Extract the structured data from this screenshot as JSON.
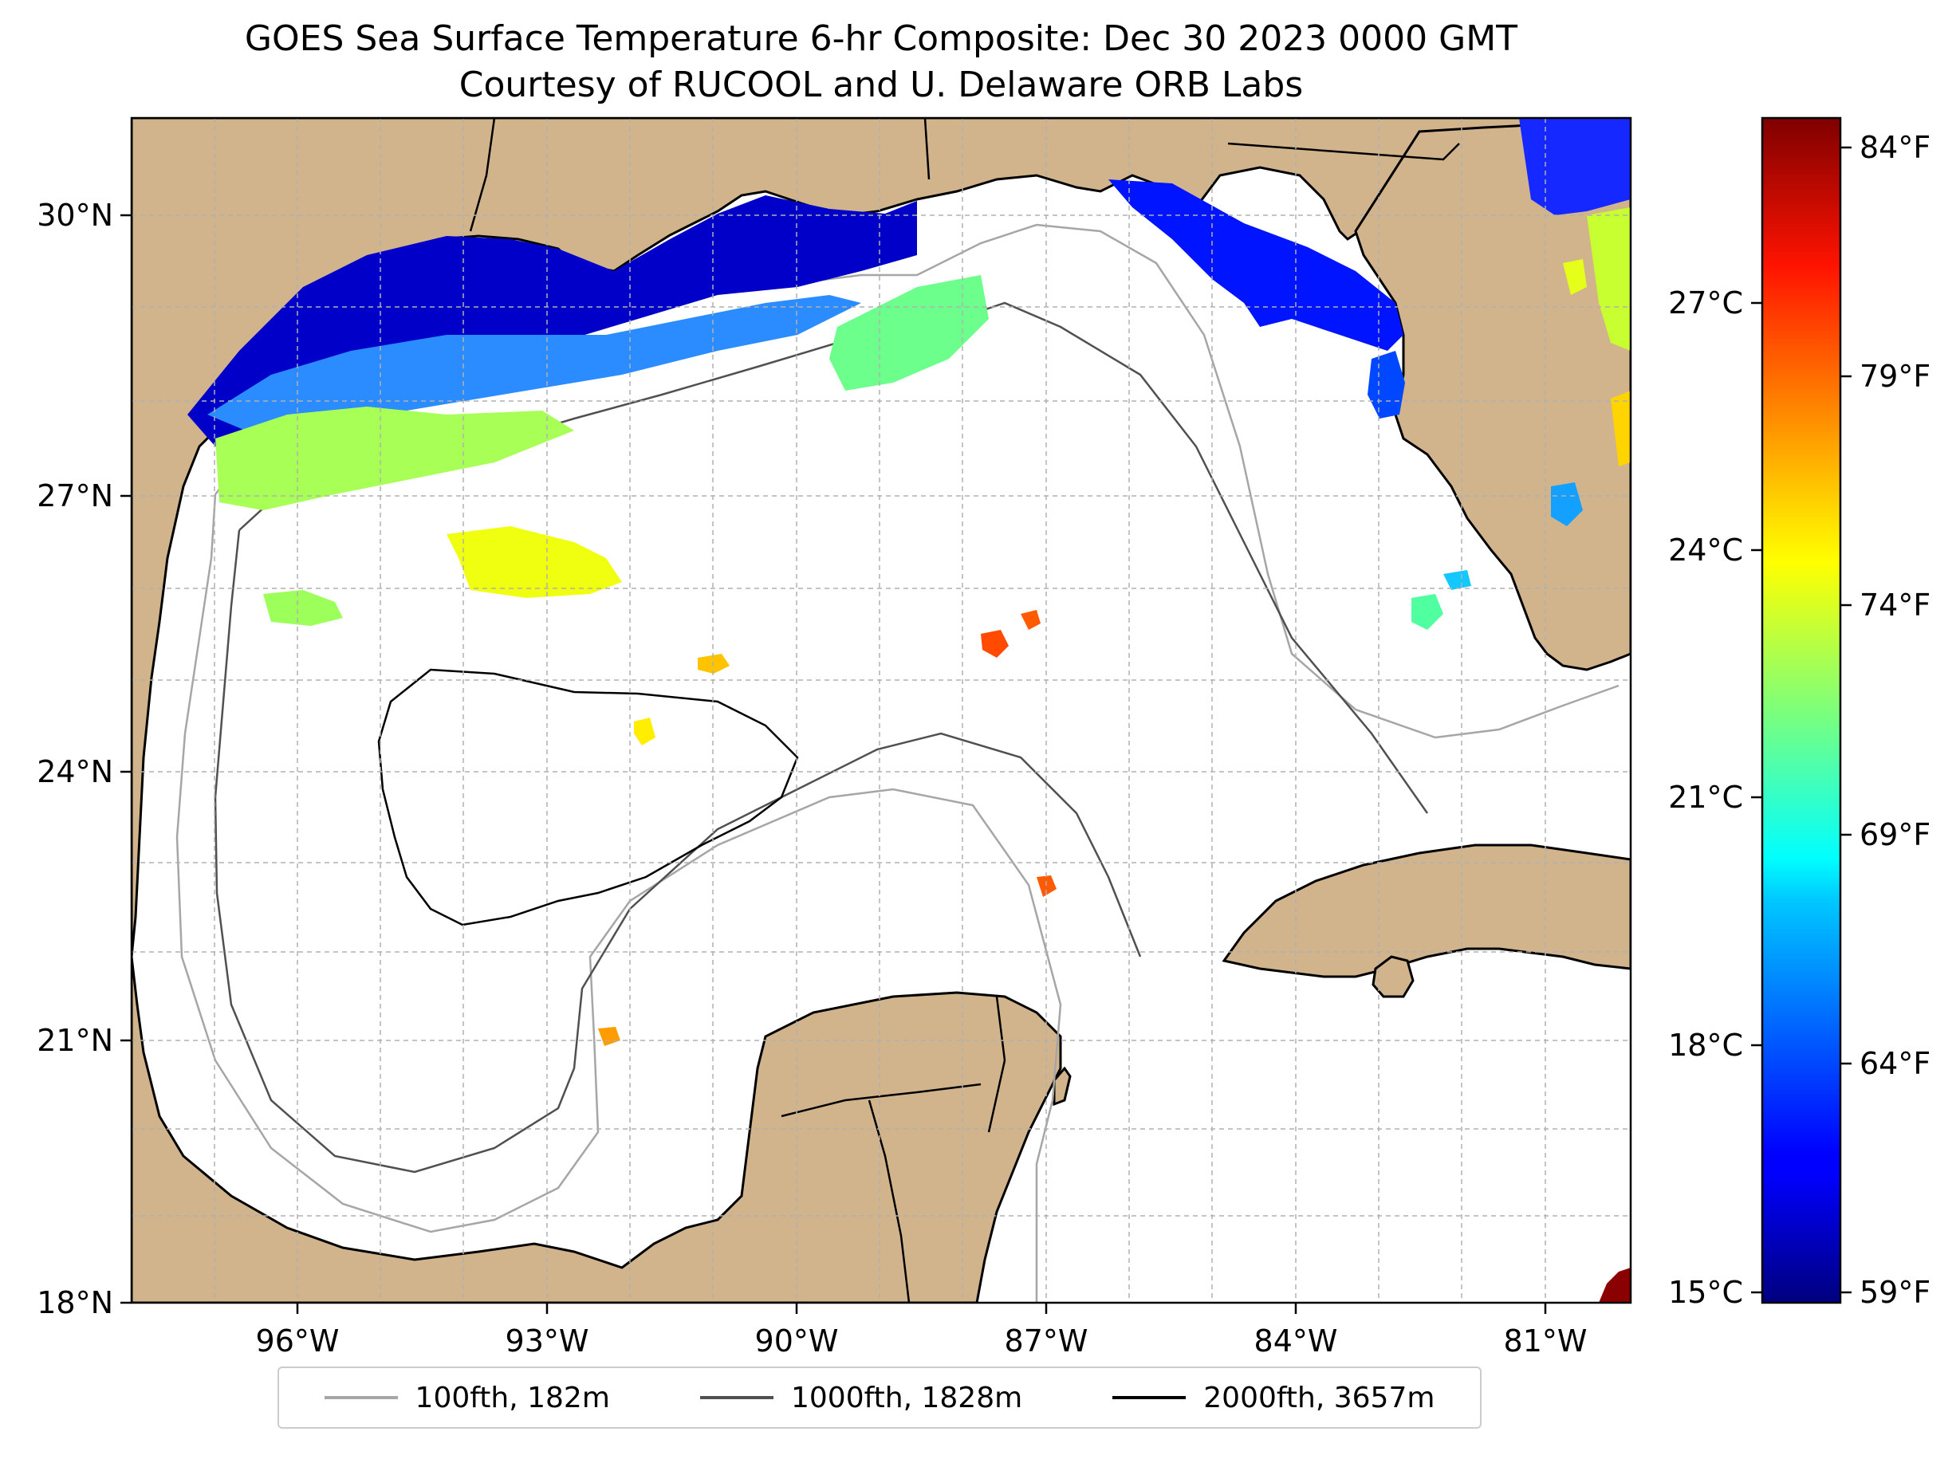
{
  "title": {
    "line1": "GOES Sea Surface Temperature 6-hr Composite: Dec 30 2023 0000 GMT",
    "line2": "Courtesy of RUCOOL and U. Delaware ORB Labs"
  },
  "map": {
    "lon_labels": [
      "96°W",
      "93°W",
      "90°W",
      "87°W",
      "84°W",
      "81°W"
    ],
    "lat_labels": [
      "30°N",
      "27°N",
      "24°N",
      "21°N",
      "18°N"
    ],
    "extent": {
      "lon_min": -98,
      "lon_max": -80,
      "lat_min": 18,
      "lat_max": 31
    },
    "colors": {
      "land": "#d2b48c",
      "ocean": "#ffffff",
      "grid": "#b0b0b0",
      "coast": "#000000"
    }
  },
  "colorbar": {
    "celsius_labels": [
      "27°C",
      "24°C",
      "21°C",
      "18°C",
      "15°C"
    ],
    "fahrenheit_labels": [
      "84°F",
      "79°F",
      "74°F",
      "69°F",
      "64°F",
      "59°F"
    ],
    "colormap": "jet",
    "range_f": [
      59,
      85
    ]
  },
  "legend": {
    "items": [
      {
        "label": "100fth, 182m",
        "color": "#a6a6a6"
      },
      {
        "label": "1000fth, 1828m",
        "color": "#505050"
      },
      {
        "label": "2000fth, 3657m",
        "color": "#000000"
      }
    ]
  }
}
